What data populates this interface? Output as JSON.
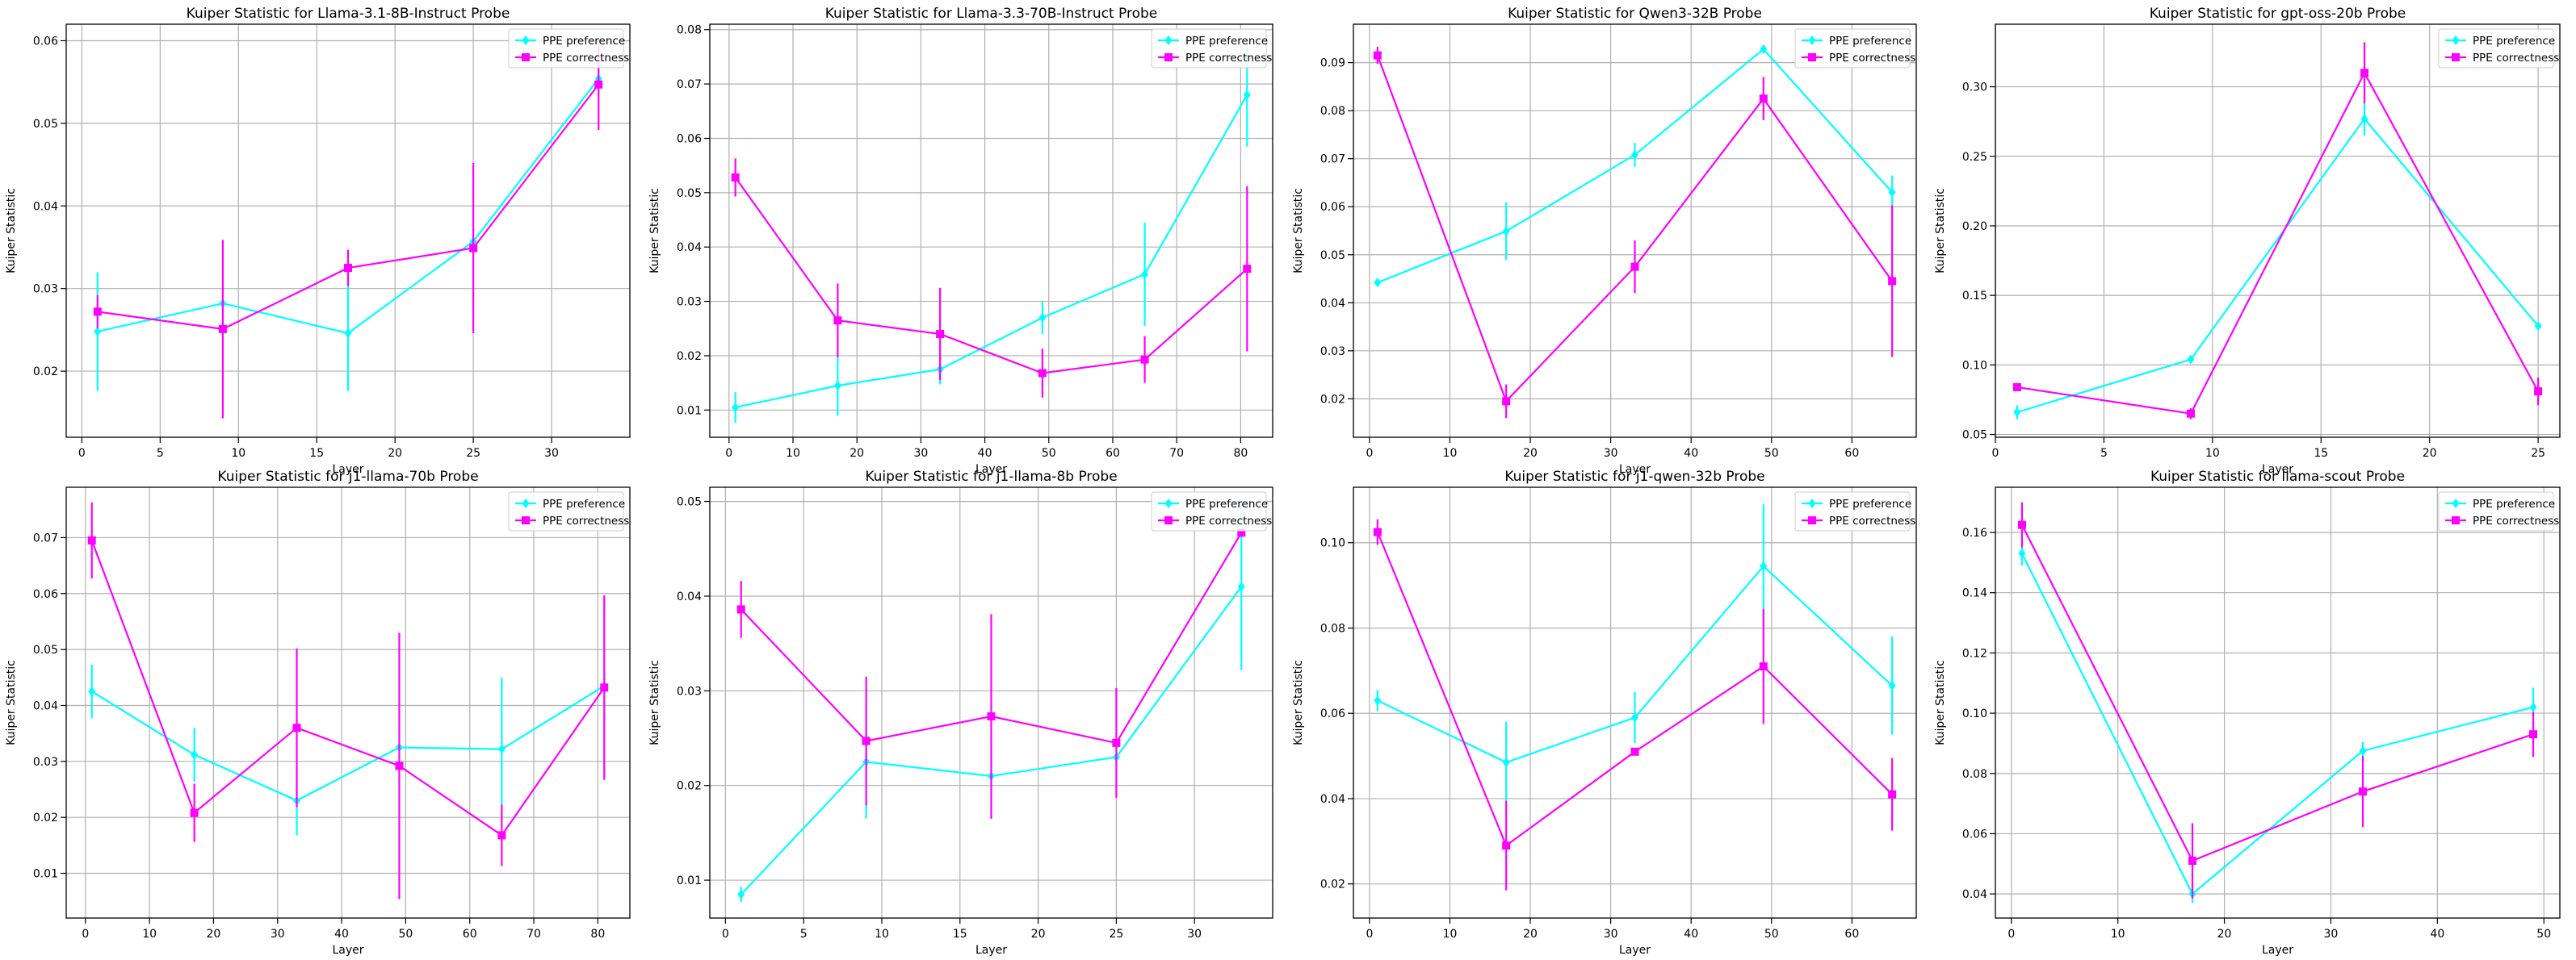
{
  "figure": {
    "layout": "2x4 grid"
  },
  "style": {
    "preference_color": "#00ffff",
    "correctness_color": "#ff00ff",
    "grid_color": "#b0b0b0"
  },
  "chart_data": [
    {
      "type": "line",
      "title": "Kuiper Statistic for Llama-3.1-8B-Instruct Probe",
      "xlabel": "Layer",
      "ylabel": "Kuiper Statistic",
      "xlim": [
        -1,
        35
      ],
      "ylim": [
        0.012,
        0.062
      ],
      "xticks": [
        0,
        5,
        10,
        15,
        20,
        25,
        30
      ],
      "yticks": [
        0.02,
        0.03,
        0.04,
        0.05,
        0.06
      ],
      "grid": true,
      "legend": "top-right",
      "series": [
        {
          "name": "PPE preference",
          "marker": "diamond",
          "x": [
            1,
            9,
            17,
            25,
            33
          ],
          "y": [
            0.0248,
            0.0282,
            0.0246,
            0.0357,
            0.0554
          ],
          "err": [
            0.0072,
            0.0,
            0.007,
            0.0,
            0.002
          ]
        },
        {
          "name": "PPE correctness",
          "marker": "square",
          "x": [
            1,
            9,
            17,
            25,
            33
          ],
          "y": [
            0.0272,
            0.0251,
            0.0325,
            0.0349,
            0.0547
          ],
          "err": [
            0.002,
            0.0108,
            0.0022,
            0.0103,
            0.0055
          ]
        }
      ]
    },
    {
      "type": "line",
      "title": "Kuiper Statistic for Llama-3.3-70B-Instruct Probe",
      "xlabel": "Layer",
      "ylabel": "Kuiper Statistic",
      "xlim": [
        -3,
        85
      ],
      "ylim": [
        0.005,
        0.081
      ],
      "xticks": [
        0,
        10,
        20,
        30,
        40,
        50,
        60,
        70,
        80
      ],
      "yticks": [
        0.01,
        0.02,
        0.03,
        0.04,
        0.05,
        0.06,
        0.07,
        0.08
      ],
      "grid": true,
      "legend": "top-right",
      "series": [
        {
          "name": "PPE preference",
          "marker": "diamond",
          "x": [
            1,
            17,
            33,
            49,
            65,
            81
          ],
          "y": [
            0.0105,
            0.0145,
            0.0175,
            0.027,
            0.035,
            0.068
          ],
          "err": [
            0.0028,
            0.0055,
            0.0028,
            0.003,
            0.0095,
            0.0095
          ]
        },
        {
          "name": "PPE correctness",
          "marker": "square",
          "x": [
            1,
            17,
            33,
            49,
            65,
            81
          ],
          "y": [
            0.0528,
            0.0265,
            0.024,
            0.0168,
            0.0193,
            0.036
          ],
          "err": [
            0.0035,
            0.0068,
            0.0085,
            0.0045,
            0.0043,
            0.0152
          ]
        }
      ]
    },
    {
      "type": "line",
      "title": "Kuiper Statistic for Qwen3-32B Probe",
      "xlabel": "Layer",
      "ylabel": "Kuiper Statistic",
      "xlim": [
        -2,
        68
      ],
      "ylim": [
        0.012,
        0.098
      ],
      "xticks": [
        0,
        10,
        20,
        30,
        40,
        50,
        60
      ],
      "yticks": [
        0.02,
        0.03,
        0.04,
        0.05,
        0.06,
        0.07,
        0.08,
        0.09
      ],
      "grid": true,
      "legend": "top-right",
      "series": [
        {
          "name": "PPE preference",
          "marker": "diamond",
          "x": [
            1,
            17,
            33,
            49,
            65
          ],
          "y": [
            0.0442,
            0.0549,
            0.0708,
            0.0928,
            0.063
          ],
          "err": [
            0.0,
            0.006,
            0.0025,
            0.0,
            0.0035
          ]
        },
        {
          "name": "PPE correctness",
          "marker": "square",
          "x": [
            1,
            17,
            33,
            49,
            65
          ],
          "y": [
            0.0915,
            0.0195,
            0.0475,
            0.0825,
            0.0445
          ],
          "err": [
            0.0018,
            0.0035,
            0.0055,
            0.0045,
            0.0158
          ]
        }
      ]
    },
    {
      "type": "line",
      "title": "Kuiper Statistic for gpt-oss-20b Probe",
      "xlabel": "Layer",
      "ylabel": "Kuiper Statistic",
      "xlim": [
        0,
        26
      ],
      "ylim": [
        0.048,
        0.345
      ],
      "xticks": [
        0,
        5,
        10,
        15,
        20,
        25
      ],
      "yticks": [
        0.05,
        0.1,
        0.15,
        0.2,
        0.25,
        0.3
      ],
      "ytick_labels": [
        "0.05",
        "0.10",
        "0.15",
        "0.20",
        "0.25",
        "0.30"
      ],
      "grid": true,
      "legend": "top-right",
      "series": [
        {
          "name": "PPE preference",
          "marker": "diamond",
          "x": [
            1,
            9,
            17,
            25
          ],
          "y": [
            0.066,
            0.104,
            0.277,
            0.128
          ],
          "err": [
            0.005,
            0.0,
            0.012,
            0.0
          ]
        },
        {
          "name": "PPE correctness",
          "marker": "square",
          "x": [
            1,
            9,
            17,
            25
          ],
          "y": [
            0.084,
            0.065,
            0.31,
            0.081
          ],
          "err": [
            0.0,
            0.004,
            0.022,
            0.01
          ]
        }
      ]
    },
    {
      "type": "line",
      "title": "Kuiper Statistic for j1-llama-70b Probe",
      "xlabel": "Layer",
      "ylabel": "Kuiper Statistic",
      "xlim": [
        -3,
        85
      ],
      "ylim": [
        0.002,
        0.079
      ],
      "xticks": [
        0,
        10,
        20,
        30,
        40,
        50,
        60,
        70,
        80
      ],
      "yticks": [
        0.01,
        0.02,
        0.03,
        0.04,
        0.05,
        0.06,
        0.07
      ],
      "grid": true,
      "legend": "top-right",
      "series": [
        {
          "name": "PPE preference",
          "marker": "diamond",
          "x": [
            1,
            17,
            33,
            49,
            65,
            81
          ],
          "y": [
            0.0425,
            0.0312,
            0.023,
            0.0325,
            0.0322,
            0.0435
          ],
          "err": [
            0.0048,
            0.0048,
            0.0062,
            0.0,
            0.0128,
            0.0
          ]
        },
        {
          "name": "PPE correctness",
          "marker": "square",
          "x": [
            1,
            17,
            33,
            49,
            65,
            81
          ],
          "y": [
            0.0695,
            0.0208,
            0.036,
            0.0292,
            0.0168,
            0.0432
          ],
          "err": [
            0.0068,
            0.0052,
            0.0142,
            0.0238,
            0.0055,
            0.0165
          ]
        }
      ]
    },
    {
      "type": "line",
      "title": "Kuiper Statistic for j1-llama-8b Probe",
      "xlabel": "Layer",
      "ylabel": "Kuiper Statistic",
      "xlim": [
        -1,
        35
      ],
      "ylim": [
        0.006,
        0.0515
      ],
      "xticks": [
        0,
        5,
        10,
        15,
        20,
        25,
        30
      ],
      "yticks": [
        0.01,
        0.02,
        0.03,
        0.04,
        0.05
      ],
      "grid": true,
      "legend": "top-right",
      "series": [
        {
          "name": "PPE preference",
          "marker": "diamond",
          "x": [
            1,
            9,
            17,
            25,
            33
          ],
          "y": [
            0.0085,
            0.0225,
            0.021,
            0.023,
            0.041
          ],
          "err": [
            0.0008,
            0.006,
            0.0045,
            0.0,
            0.0088
          ]
        },
        {
          "name": "PPE correctness",
          "marker": "square",
          "x": [
            1,
            9,
            17,
            25,
            33
          ],
          "y": [
            0.0386,
            0.0247,
            0.0273,
            0.0245,
            0.0467
          ],
          "err": [
            0.003,
            0.0068,
            0.0108,
            0.0058,
            0.0
          ]
        }
      ]
    },
    {
      "type": "line",
      "title": "Kuiper Statistic for j1-qwen-32b Probe",
      "xlabel": "Layer",
      "ylabel": "Kuiper Statistic",
      "xlim": [
        -2,
        68
      ],
      "ylim": [
        0.012,
        0.113
      ],
      "xticks": [
        0,
        10,
        20,
        30,
        40,
        50,
        60
      ],
      "yticks": [
        0.02,
        0.04,
        0.06,
        0.08,
        0.1
      ],
      "ytick_labels": [
        "0.02",
        "0.04",
        "0.06",
        "0.08",
        "0.10"
      ],
      "grid": true,
      "legend": "top-right",
      "series": [
        {
          "name": "PPE preference",
          "marker": "diamond",
          "x": [
            1,
            17,
            33,
            49,
            65
          ],
          "y": [
            0.063,
            0.0485,
            0.059,
            0.0945,
            0.0665
          ],
          "err": [
            0.0025,
            0.0095,
            0.006,
            0.0145,
            0.0115
          ]
        },
        {
          "name": "PPE correctness",
          "marker": "square",
          "x": [
            1,
            17,
            33,
            49,
            65
          ],
          "y": [
            0.1025,
            0.029,
            0.051,
            0.071,
            0.041
          ],
          "err": [
            0.003,
            0.0105,
            0.0,
            0.0135,
            0.0085
          ]
        }
      ]
    },
    {
      "type": "line",
      "title": "Kuiper Statistic for llama-scout Probe",
      "xlabel": "Layer",
      "ylabel": "Kuiper Statistic",
      "xlim": [
        -1.5,
        51.5
      ],
      "ylim": [
        0.032,
        0.175
      ],
      "xticks": [
        0,
        10,
        20,
        30,
        40,
        50
      ],
      "yticks": [
        0.04,
        0.06,
        0.08,
        0.1,
        0.12,
        0.14,
        0.16
      ],
      "ytick_labels": [
        "0.04",
        "0.06",
        "0.08",
        "0.10",
        "0.12",
        "0.14",
        "0.16"
      ],
      "grid": true,
      "legend": "top-right",
      "series": [
        {
          "name": "PPE preference",
          "marker": "diamond",
          "x": [
            1,
            17,
            33,
            49
          ],
          "y": [
            0.153,
            0.04,
            0.0875,
            0.102
          ],
          "err": [
            0.004,
            0.003,
            0.003,
            0.0065
          ]
        },
        {
          "name": "PPE correctness",
          "marker": "square",
          "x": [
            1,
            17,
            33,
            49
          ],
          "y": [
            0.1625,
            0.051,
            0.074,
            0.093
          ],
          "err": [
            0.0075,
            0.0125,
            0.0118,
            0.0075
          ]
        }
      ]
    }
  ]
}
